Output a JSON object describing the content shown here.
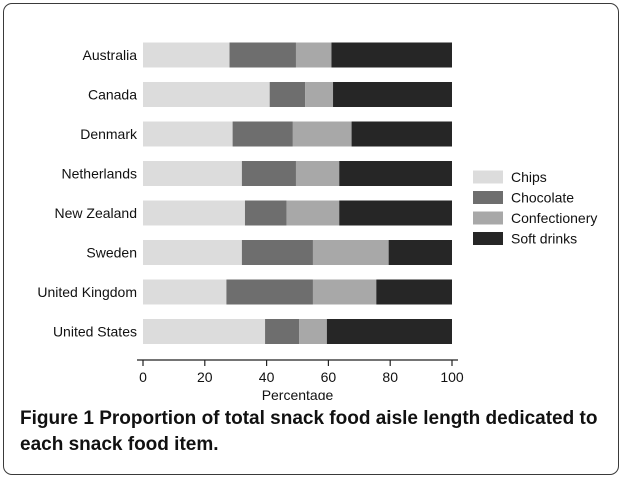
{
  "chart_data": {
    "type": "bar",
    "orientation": "horizontal",
    "stacked": true,
    "categories": [
      "Australia",
      "Canada",
      "Denmark",
      "Netherlands",
      "New Zealand",
      "Sweden",
      "United Kingdom",
      "United States"
    ],
    "series": [
      {
        "name": "Chips",
        "values": [
          28,
          41,
          29,
          32,
          33,
          32,
          27,
          39.5
        ]
      },
      {
        "name": "Chocolate",
        "values": [
          21.5,
          11.5,
          19.5,
          17.5,
          13.5,
          23,
          28,
          11
        ]
      },
      {
        "name": "Confectionery",
        "values": [
          11.5,
          9,
          19,
          14,
          17,
          24.5,
          20.5,
          9
        ]
      },
      {
        "name": "Soft drinks",
        "values": [
          39,
          38.5,
          32.5,
          36.5,
          36.5,
          20.5,
          24.5,
          40.5
        ]
      }
    ],
    "colors": [
      "#dcdcdc",
      "#6e6e6e",
      "#a8a8a8",
      "#262626"
    ],
    "xlabel": "Percentage",
    "ylabel": "",
    "xlim": [
      0,
      100
    ],
    "xticks": [
      "0",
      "20",
      "40",
      "60",
      "80",
      "100"
    ],
    "legend_position": "right",
    "grid": false
  },
  "caption": {
    "label": "Figure 1",
    "text": "Proportion of total snack food aisle length dedicated to each snack food item."
  }
}
